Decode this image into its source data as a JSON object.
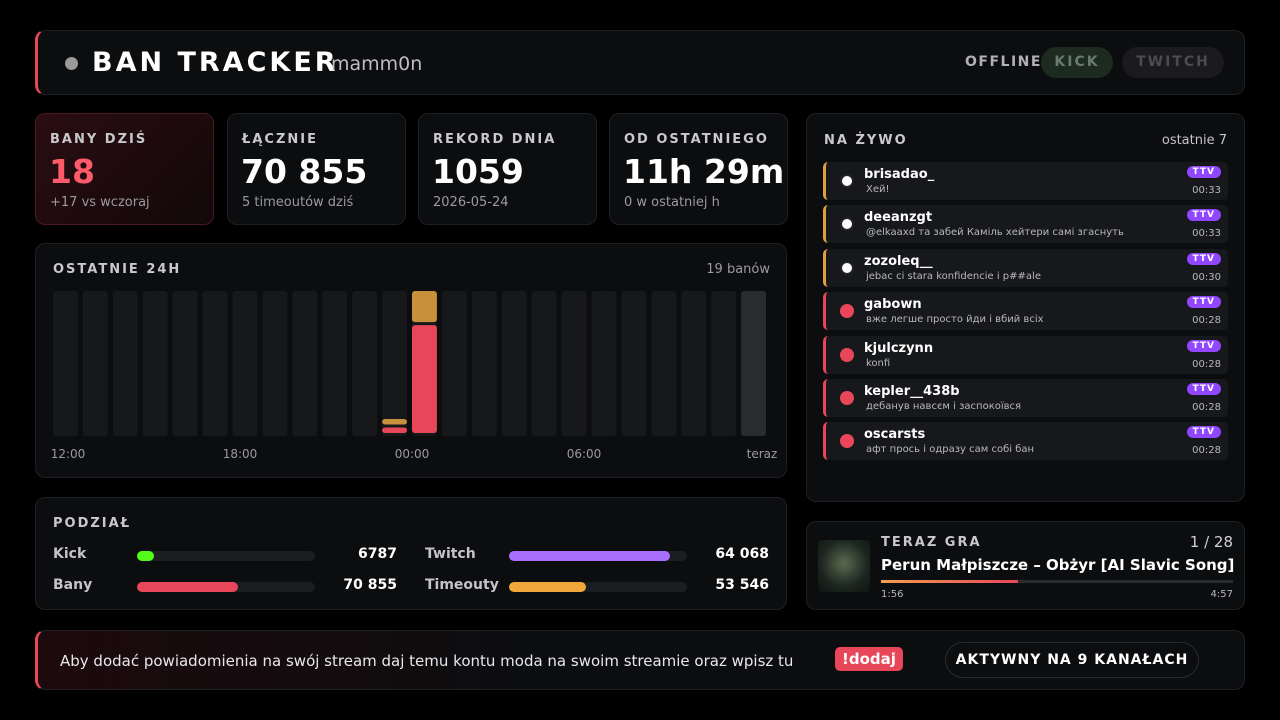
{
  "header": {
    "title": "BAN TRACKER",
    "channel": "mamm0n",
    "status": "OFFLINE",
    "platforms": [
      "KICK",
      "TWITCH"
    ]
  },
  "stats": [
    {
      "label": "BANY DZIŚ",
      "value": "18",
      "note": "+17 vs wczoraj"
    },
    {
      "label": "ŁĄCZNIE",
      "value": "70 855",
      "note": "5 timeoutów dziś"
    },
    {
      "label": "REKORD DNIA",
      "value": "1059",
      "note": "2026-05-24"
    },
    {
      "label": "OD OSTATNIEGO",
      "value": "11h 29m",
      "note": "0 w ostatniej h"
    }
  ],
  "chart_data": {
    "type": "bar",
    "stacked": true,
    "title": "OSTATNIE 24H",
    "subtitle": "19 banów",
    "x_labels": [
      "12:00",
      "18:00",
      "00:00",
      "06:00",
      "teraz"
    ],
    "series": [
      {
        "color": "#e8475a",
        "values": [
          0,
          0,
          0,
          0,
          0,
          0,
          0,
          0,
          0,
          0,
          0,
          1,
          13,
          0,
          0,
          0,
          0,
          0,
          0,
          0,
          0,
          0,
          0,
          0
        ]
      },
      {
        "color": "#c8903a",
        "values": [
          0,
          0,
          0,
          0,
          0,
          0,
          0,
          0,
          0,
          0,
          0,
          1,
          4,
          0,
          0,
          0,
          0,
          0,
          0,
          0,
          0,
          0,
          0,
          0
        ]
      }
    ]
  },
  "split": {
    "title": "PODZIAŁ",
    "groups": [
      [
        {
          "label": "Kick",
          "value": 6787,
          "value_label": "6787",
          "color": "#53fc18"
        },
        {
          "label": "Twitch",
          "value": 64068,
          "value_label": "64 068",
          "color": "#a970ff"
        }
      ],
      [
        {
          "label": "Bany",
          "value": 70855,
          "value_label": "70 855",
          "color": "#e8475a"
        },
        {
          "label": "Timeouty",
          "value": 53546,
          "value_label": "53 546",
          "color": "#f0a83a"
        }
      ]
    ]
  },
  "live": {
    "title": "NA ŻYWO",
    "subtitle": "ostatnie 7",
    "items": [
      {
        "kind": "timeout",
        "user": "brisadao_",
        "message": "Хей!",
        "badge": "TTV",
        "time": "00:33"
      },
      {
        "kind": "timeout",
        "user": "deeanzgt",
        "message": "@elkaaxd та забей Каміль хейтери самі згаснуть",
        "badge": "TTV",
        "time": "00:33"
      },
      {
        "kind": "timeout",
        "user": "zozoleq__",
        "message": "jebac ci stara konfidencie i p##ale",
        "badge": "TTV",
        "time": "00:30"
      },
      {
        "kind": "ban",
        "user": "gabown",
        "message": "вже легше просто йди і вбий всіх",
        "badge": "TTV",
        "time": "00:28"
      },
      {
        "kind": "ban",
        "user": "kjulczynn",
        "message": "konfi",
        "badge": "TTV",
        "time": "00:28"
      },
      {
        "kind": "ban",
        "user": "kepler__438b",
        "message": "дебанув навсєм і заспокоївся",
        "badge": "TTV",
        "time": "00:28"
      },
      {
        "kind": "ban",
        "user": "oscarsts",
        "message": "афт прось і одразу сам собі бан",
        "badge": "TTV",
        "time": "00:28"
      }
    ]
  },
  "now_playing": {
    "label": "TERAZ GRA",
    "position": "1 / 28",
    "title": "Perun Małpiszcze – Obżyr [AI Slavic Song]",
    "elapsed": "1:56",
    "duration": "4:57"
  },
  "footer": {
    "text": "Aby dodać powiadomienia na swój stream daj temu kontu moda na swoim streamie oraz wpisz tu",
    "command": "!dodaj",
    "active": "AKTYWNY NA 9 KANAŁACH"
  }
}
